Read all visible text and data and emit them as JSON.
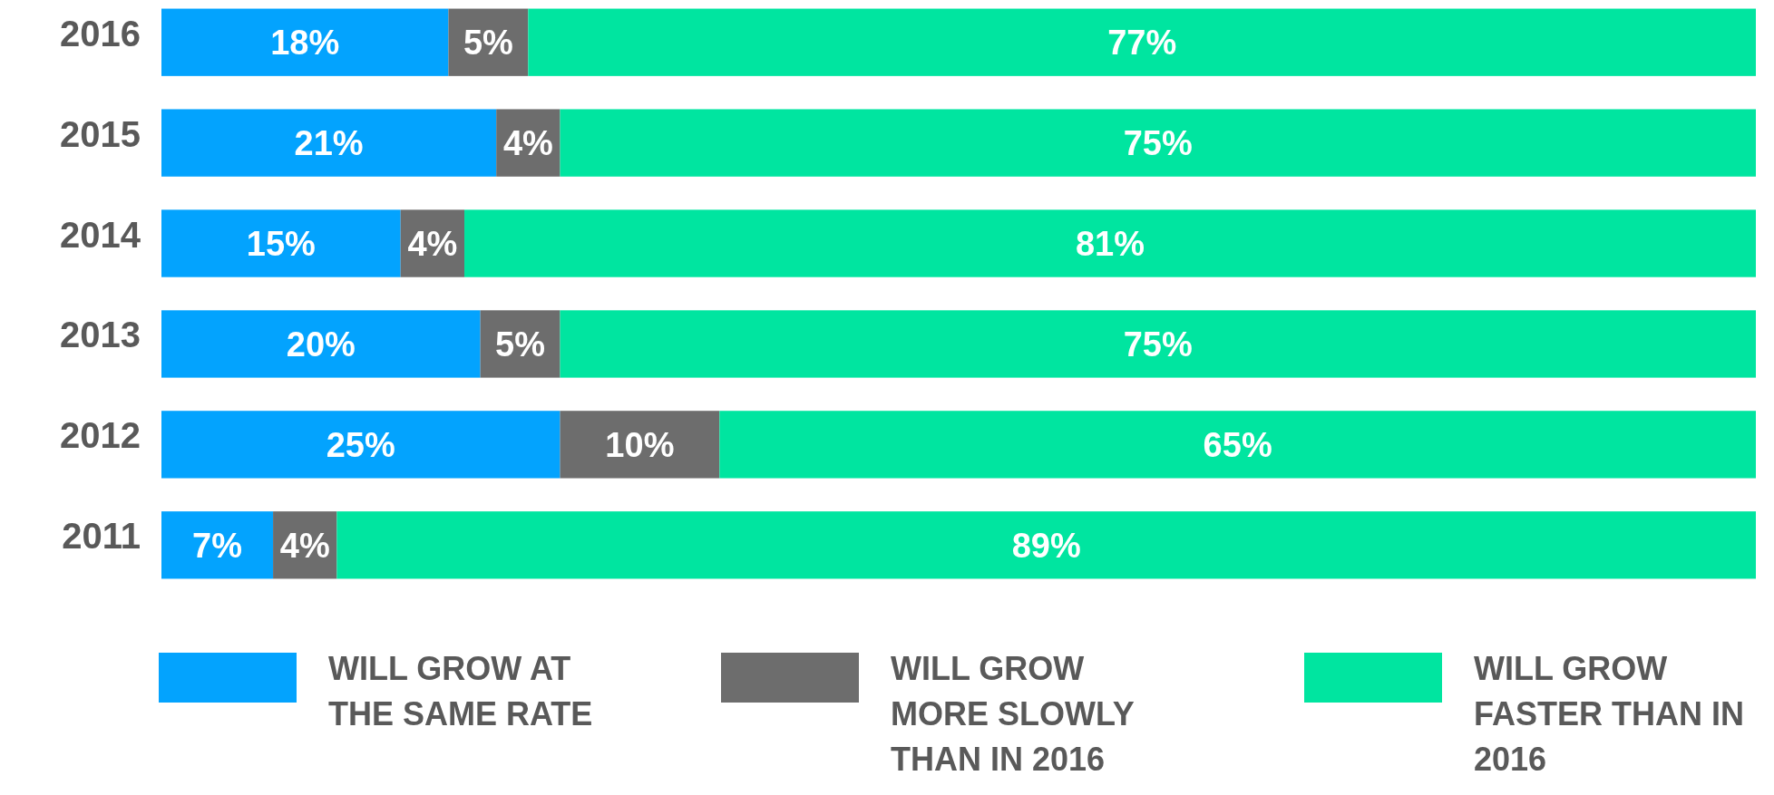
{
  "chart_data": {
    "type": "bar",
    "orientation": "horizontal",
    "stacked": true,
    "categories": [
      "2016",
      "2015",
      "2014",
      "2013",
      "2012",
      "2011"
    ],
    "xlim": [
      0,
      100
    ],
    "tick_labels": "y",
    "legend": "bottom",
    "series": [
      {
        "name": "WILL GROW AT THE SAME RATE",
        "color": "#03a3fe",
        "values": [
          18,
          21,
          15,
          20,
          25,
          7
        ],
        "value_labels": [
          "18%",
          "21%",
          "15%",
          "20%",
          "25%",
          "7%"
        ]
      },
      {
        "name": "WILL GROW MORE SLOWLY THAN IN 2016",
        "color": "#6d6d6d",
        "values": [
          5,
          4,
          4,
          5,
          10,
          4
        ],
        "value_labels": [
          "5%",
          "4%",
          "4%",
          "5%",
          "10%",
          "4%"
        ]
      },
      {
        "name": "WILL GROW FASTER THAN IN 2016",
        "color": "#00e5a0",
        "values": [
          77,
          75,
          81,
          75,
          65,
          89
        ],
        "value_labels": [
          "77%",
          "75%",
          "81%",
          "75%",
          "65%",
          "89%"
        ]
      }
    ]
  }
}
